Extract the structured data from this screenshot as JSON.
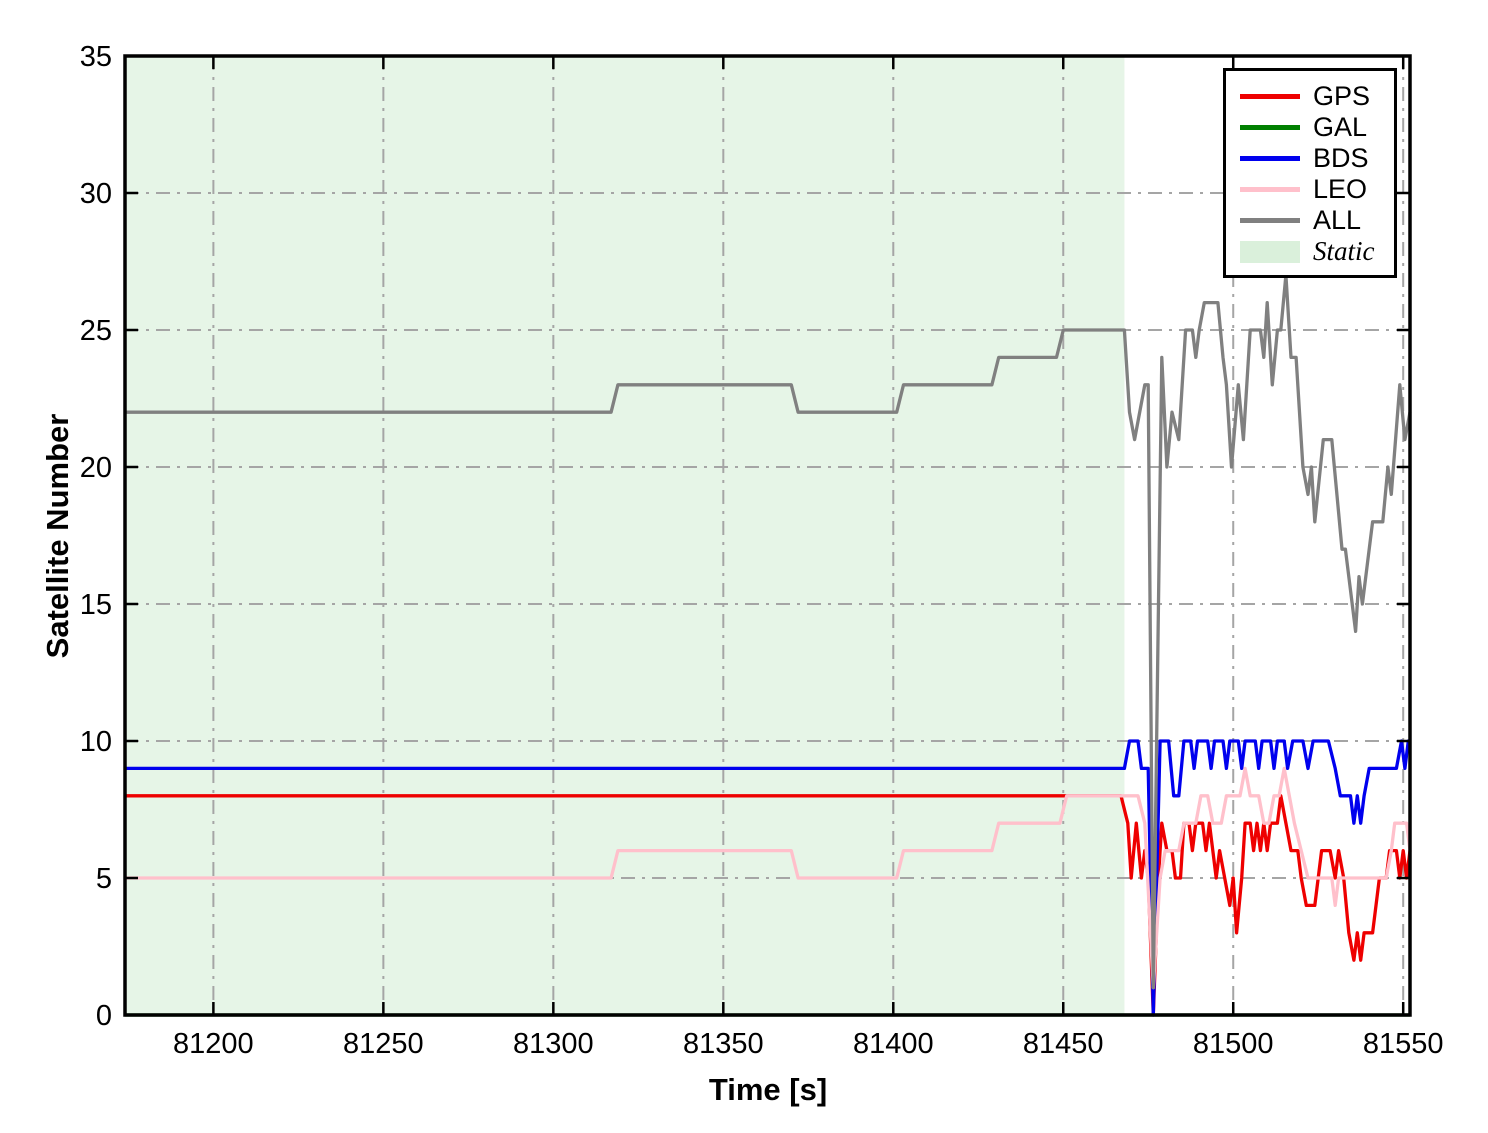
{
  "figure": {
    "background": "#ffffff"
  },
  "chart_data": {
    "type": "line",
    "title": "",
    "xlabel": "Time [s]",
    "ylabel": "Satellite Number",
    "xlim": [
      81174,
      81552
    ],
    "ylim": [
      0,
      35
    ],
    "x_ticks": [
      81200,
      81250,
      81300,
      81350,
      81400,
      81450,
      81500,
      81550
    ],
    "y_ticks": [
      0,
      5,
      10,
      15,
      20,
      25,
      30,
      35
    ],
    "grid": {
      "show": true,
      "style": "dash-dot",
      "color": "#a5a5a5"
    },
    "static_region": {
      "label": "Static",
      "x_start": 81174,
      "x_end": 81468,
      "fill": "#e6f5e7",
      "legend_swatch_fill": "#daf0db"
    },
    "legend": {
      "position": "upper-right",
      "entries": [
        "GPS",
        "GAL",
        "BDS",
        "LEO",
        "ALL",
        "Static"
      ]
    },
    "series": [
      {
        "name": "GPS",
        "color": "#ee0000",
        "points": [
          [
            81174,
            8
          ],
          [
            81467,
            8
          ],
          [
            81469,
            7
          ],
          [
            81470,
            5
          ],
          [
            81471.5,
            7
          ],
          [
            81473,
            5
          ],
          [
            81474,
            6
          ],
          [
            81475,
            5
          ],
          [
            81476.5,
            0
          ],
          [
            81478,
            5
          ],
          [
            81479,
            7
          ],
          [
            81480.5,
            6
          ],
          [
            81482,
            6
          ],
          [
            81483,
            5
          ],
          [
            81484.5,
            5
          ],
          [
            81485.5,
            7
          ],
          [
            81487,
            7
          ],
          [
            81488,
            6
          ],
          [
            81489,
            7
          ],
          [
            81491,
            7
          ],
          [
            81492,
            6
          ],
          [
            81493,
            7
          ],
          [
            81494,
            6
          ],
          [
            81495,
            5
          ],
          [
            81496,
            6
          ],
          [
            81497.5,
            5
          ],
          [
            81499,
            4
          ],
          [
            81500,
            5
          ],
          [
            81501,
            3
          ],
          [
            81502.5,
            5
          ],
          [
            81503.5,
            7
          ],
          [
            81505,
            7
          ],
          [
            81506,
            6
          ],
          [
            81507,
            7
          ],
          [
            81508,
            6
          ],
          [
            81509,
            7
          ],
          [
            81510,
            6
          ],
          [
            81511,
            7
          ],
          [
            81513,
            7
          ],
          [
            81514,
            8
          ],
          [
            81515.5,
            7
          ],
          [
            81517,
            6
          ],
          [
            81519,
            6
          ],
          [
            81520,
            5
          ],
          [
            81521.5,
            4
          ],
          [
            81524,
            4
          ],
          [
            81526,
            6
          ],
          [
            81528.5,
            6
          ],
          [
            81530,
            5
          ],
          [
            81531,
            6
          ],
          [
            81532.5,
            5
          ],
          [
            81534,
            3
          ],
          [
            81535.5,
            2
          ],
          [
            81536.5,
            3
          ],
          [
            81537.5,
            2
          ],
          [
            81538.5,
            3
          ],
          [
            81541,
            3
          ],
          [
            81543,
            5
          ],
          [
            81545,
            5
          ],
          [
            81546,
            6
          ],
          [
            81548,
            6
          ],
          [
            81549,
            5
          ],
          [
            81550,
            6
          ],
          [
            81551,
            5
          ],
          [
            81552,
            6
          ]
        ]
      },
      {
        "name": "GAL",
        "color": "#008000",
        "points": [
          [
            81174,
            0
          ],
          [
            81552,
            0
          ]
        ]
      },
      {
        "name": "BDS",
        "color": "#0000ee",
        "points": [
          [
            81174,
            9
          ],
          [
            81468,
            9
          ],
          [
            81469.5,
            10
          ],
          [
            81472,
            10
          ],
          [
            81473,
            9
          ],
          [
            81475,
            9
          ],
          [
            81476.5,
            0
          ],
          [
            81478.5,
            10
          ],
          [
            81481,
            10
          ],
          [
            81482.5,
            8
          ],
          [
            81484,
            8
          ],
          [
            81485.5,
            10
          ],
          [
            81487.5,
            10
          ],
          [
            81488.5,
            9
          ],
          [
            81489.5,
            10
          ],
          [
            81492.5,
            10
          ],
          [
            81493.5,
            9
          ],
          [
            81494.5,
            10
          ],
          [
            81497,
            10
          ],
          [
            81498,
            9
          ],
          [
            81499,
            10
          ],
          [
            81501.5,
            10
          ],
          [
            81502.5,
            9
          ],
          [
            81503.5,
            10
          ],
          [
            81506.5,
            10
          ],
          [
            81507.5,
            9
          ],
          [
            81508.5,
            10
          ],
          [
            81511,
            10
          ],
          [
            81512,
            9
          ],
          [
            81513,
            10
          ],
          [
            81515,
            10
          ],
          [
            81516,
            9
          ],
          [
            81517.5,
            10
          ],
          [
            81520.5,
            10
          ],
          [
            81522,
            9
          ],
          [
            81523.5,
            10
          ],
          [
            81528,
            10
          ],
          [
            81530,
            9
          ],
          [
            81531.5,
            8
          ],
          [
            81534.5,
            8
          ],
          [
            81535.5,
            7
          ],
          [
            81536.5,
            8
          ],
          [
            81537.5,
            7
          ],
          [
            81538.5,
            8
          ],
          [
            81540,
            9
          ],
          [
            81548,
            9
          ],
          [
            81549.5,
            10
          ],
          [
            81550.5,
            9
          ],
          [
            81551.5,
            10
          ],
          [
            81552,
            10
          ]
        ]
      },
      {
        "name": "LEO",
        "color": "#ffc0cb",
        "points": [
          [
            81174,
            5
          ],
          [
            81317,
            5
          ],
          [
            81319,
            6
          ],
          [
            81370,
            6
          ],
          [
            81372,
            5
          ],
          [
            81401,
            5
          ],
          [
            81403,
            6
          ],
          [
            81429,
            6
          ],
          [
            81431,
            7
          ],
          [
            81449,
            7
          ],
          [
            81451,
            8
          ],
          [
            81472,
            8
          ],
          [
            81474,
            7
          ],
          [
            81476.5,
            1
          ],
          [
            81478.5,
            5
          ],
          [
            81480,
            6
          ],
          [
            81484,
            6
          ],
          [
            81485.5,
            7
          ],
          [
            81489,
            7
          ],
          [
            81490.5,
            8
          ],
          [
            81492.5,
            8
          ],
          [
            81494,
            7
          ],
          [
            81496.5,
            7
          ],
          [
            81498,
            8
          ],
          [
            81502,
            8
          ],
          [
            81503.5,
            9
          ],
          [
            81505,
            8
          ],
          [
            81507.5,
            8
          ],
          [
            81509,
            7
          ],
          [
            81510.5,
            7
          ],
          [
            81512,
            8
          ],
          [
            81513.5,
            8
          ],
          [
            81515,
            9
          ],
          [
            81516.5,
            8
          ],
          [
            81518,
            7
          ],
          [
            81520,
            6
          ],
          [
            81522,
            5
          ],
          [
            81529,
            5
          ],
          [
            81530,
            4
          ],
          [
            81531,
            5
          ],
          [
            81545,
            5
          ],
          [
            81546.5,
            6
          ],
          [
            81547.5,
            7
          ],
          [
            81551,
            7
          ],
          [
            81552,
            6
          ]
        ]
      },
      {
        "name": "ALL",
        "color": "#808080",
        "points": [
          [
            81174,
            22
          ],
          [
            81317,
            22
          ],
          [
            81319,
            23
          ],
          [
            81370,
            23
          ],
          [
            81372,
            22
          ],
          [
            81401,
            22
          ],
          [
            81403,
            23
          ],
          [
            81429,
            23
          ],
          [
            81431,
            24
          ],
          [
            81448,
            24
          ],
          [
            81450,
            25
          ],
          [
            81468,
            25
          ],
          [
            81469.5,
            22
          ],
          [
            81471,
            21
          ],
          [
            81472.5,
            22
          ],
          [
            81474,
            23
          ],
          [
            81475,
            23
          ],
          [
            81476.5,
            1
          ],
          [
            81479,
            24
          ],
          [
            81480.5,
            20
          ],
          [
            81482,
            22
          ],
          [
            81484,
            21
          ],
          [
            81486,
            25
          ],
          [
            81488,
            25
          ],
          [
            81489,
            24
          ],
          [
            81490,
            25
          ],
          [
            81491.5,
            26
          ],
          [
            81495.5,
            26
          ],
          [
            81497,
            24
          ],
          [
            81498,
            23
          ],
          [
            81499.5,
            20
          ],
          [
            81501.5,
            23
          ],
          [
            81503,
            21
          ],
          [
            81505,
            25
          ],
          [
            81508,
            25
          ],
          [
            81509,
            24
          ],
          [
            81510,
            26
          ],
          [
            81511.5,
            23
          ],
          [
            81513,
            25
          ],
          [
            81514,
            25
          ],
          [
            81515.5,
            27
          ],
          [
            81517,
            24
          ],
          [
            81518.5,
            24
          ],
          [
            81520.5,
            20
          ],
          [
            81522,
            19
          ],
          [
            81523,
            20
          ],
          [
            81524,
            18
          ],
          [
            81526.5,
            21
          ],
          [
            81529,
            21
          ],
          [
            81530.5,
            19
          ],
          [
            81532,
            17
          ],
          [
            81533,
            17
          ],
          [
            81534,
            16
          ],
          [
            81535,
            15
          ],
          [
            81536,
            14
          ],
          [
            81537,
            16
          ],
          [
            81538,
            15
          ],
          [
            81539,
            16
          ],
          [
            81541,
            18
          ],
          [
            81544,
            18
          ],
          [
            81545.5,
            20
          ],
          [
            81546.5,
            19
          ],
          [
            81549,
            23
          ],
          [
            81550.5,
            21
          ],
          [
            81552,
            22
          ]
        ]
      }
    ]
  }
}
